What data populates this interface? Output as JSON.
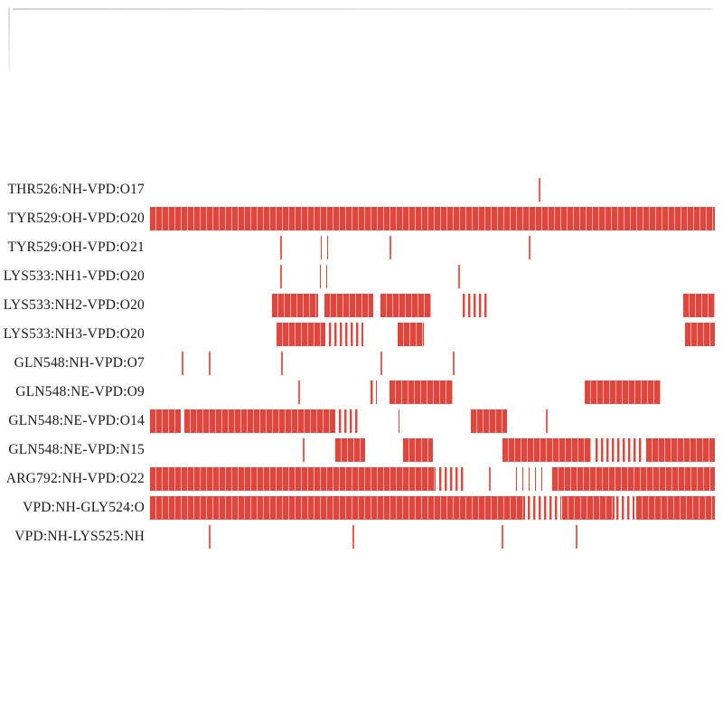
{
  "chart_data": {
    "type": "heatmap",
    "description": "hydrogen-bond occupancy timeline; red marks indicate bond present",
    "colors": {
      "bond": "#e0463c",
      "background": "#ffffff",
      "label_text": "#1a1a1a"
    },
    "x_axis": {
      "range_fraction": [
        0,
        1
      ],
      "ticks": []
    },
    "rows": [
      {
        "label": "THR526:NH-VPD:O17",
        "segments": [
          [
            0.688,
            0.691,
            "line"
          ]
        ]
      },
      {
        "label": "TYR529:OH-VPD:O20",
        "segments": [
          [
            0.0,
            1.0,
            "dense"
          ]
        ]
      },
      {
        "label": "TYR529:OH-VPD:O21",
        "segments": [
          [
            0.231,
            0.234,
            "line"
          ],
          [
            0.303,
            0.318,
            "sparse"
          ],
          [
            0.424,
            0.427,
            "line"
          ],
          [
            0.671,
            0.674,
            "line"
          ]
        ]
      },
      {
        "label": "LYS533:NH1-VPD:O20",
        "segments": [
          [
            0.231,
            0.234,
            "line"
          ],
          [
            0.301,
            0.315,
            "sparse"
          ],
          [
            0.545,
            0.548,
            "line"
          ]
        ]
      },
      {
        "label": "LYS533:NH2-VPD:O20",
        "segments": [
          [
            0.216,
            0.298,
            "dense"
          ],
          [
            0.308,
            0.395,
            "dense"
          ],
          [
            0.408,
            0.498,
            "dense"
          ],
          [
            0.553,
            0.6,
            "med"
          ],
          [
            0.944,
            1.0,
            "dense"
          ]
        ]
      },
      {
        "label": "LYS533:NH3-VPD:O20",
        "segments": [
          [
            0.224,
            0.31,
            "dense"
          ],
          [
            0.316,
            0.378,
            "med"
          ],
          [
            0.438,
            0.484,
            "dense"
          ],
          [
            0.947,
            1.0,
            "dense"
          ]
        ]
      },
      {
        "label": "GLN548:NH-VPD:O7",
        "segments": [
          [
            0.056,
            0.059,
            "line"
          ],
          [
            0.104,
            0.107,
            "line"
          ],
          [
            0.232,
            0.235,
            "line"
          ],
          [
            0.408,
            0.411,
            "line"
          ],
          [
            0.536,
            0.539,
            "line"
          ]
        ]
      },
      {
        "label": "GLN548:NE-VPD:O9",
        "segments": [
          [
            0.262,
            0.265,
            "line"
          ],
          [
            0.39,
            0.402,
            "med"
          ],
          [
            0.424,
            0.536,
            "dense"
          ],
          [
            0.769,
            0.904,
            "dense"
          ]
        ]
      },
      {
        "label": "GLN548:NE-VPD:O14",
        "segments": [
          [
            0.0,
            0.054,
            "dense"
          ],
          [
            0.06,
            0.328,
            "dense"
          ],
          [
            0.334,
            0.368,
            "med"
          ],
          [
            0.44,
            0.45,
            "sparse"
          ],
          [
            0.568,
            0.632,
            "dense"
          ],
          [
            0.7,
            0.703,
            "line"
          ]
        ]
      },
      {
        "label": "GLN548:NE-VPD:N15",
        "segments": [
          [
            0.27,
            0.273,
            "line"
          ],
          [
            0.328,
            0.38,
            "dense"
          ],
          [
            0.448,
            0.5,
            "dense"
          ],
          [
            0.624,
            0.78,
            "dense"
          ],
          [
            0.788,
            0.872,
            "med"
          ],
          [
            0.878,
            1.0,
            "dense"
          ]
        ]
      },
      {
        "label": "ARG792:NH-VPD:O22",
        "segments": [
          [
            0.0,
            0.505,
            "dense"
          ],
          [
            0.512,
            0.558,
            "med"
          ],
          [
            0.6,
            0.603,
            "line"
          ],
          [
            0.648,
            0.7,
            "sparse"
          ],
          [
            0.712,
            1.0,
            "dense"
          ]
        ]
      },
      {
        "label": "VPD:NH-GLY524:O",
        "segments": [
          [
            0.0,
            0.664,
            "dense"
          ],
          [
            0.668,
            0.728,
            "med"
          ],
          [
            0.73,
            0.822,
            "dense"
          ],
          [
            0.826,
            0.858,
            "med"
          ],
          [
            0.86,
            1.0,
            "dense"
          ]
        ]
      },
      {
        "label": "VPD:NH-LYS525:NH",
        "segments": [
          [
            0.104,
            0.107,
            "line"
          ],
          [
            0.358,
            0.361,
            "line"
          ],
          [
            0.622,
            0.625,
            "line"
          ],
          [
            0.754,
            0.757,
            "line"
          ]
        ]
      }
    ]
  }
}
